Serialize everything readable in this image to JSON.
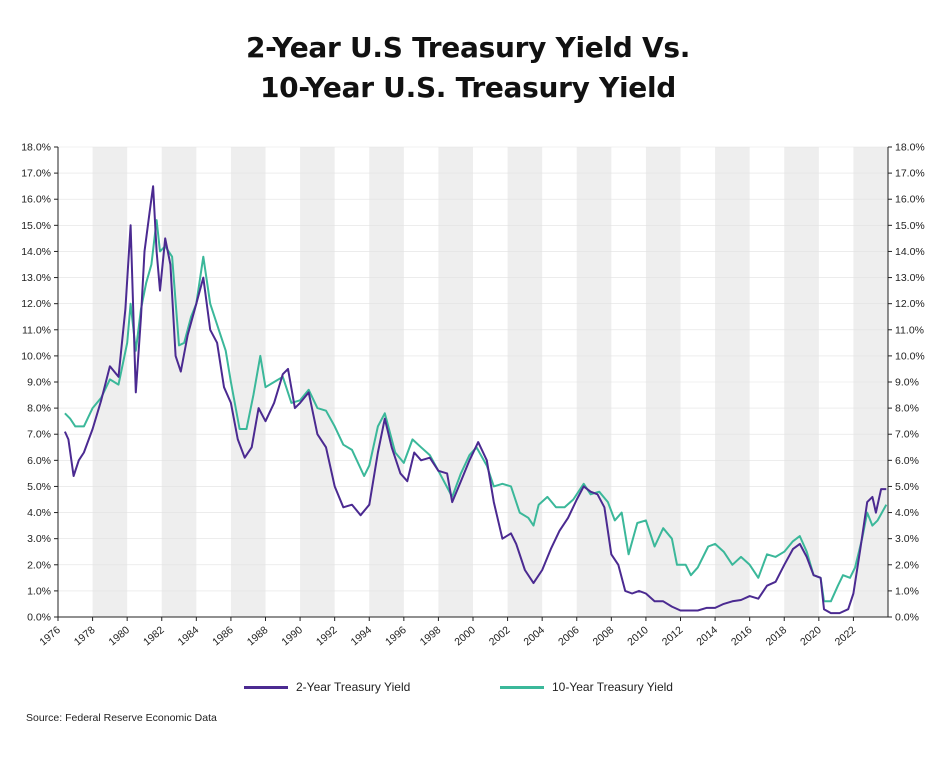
{
  "chart_data": {
    "type": "line",
    "title_line1": "2-Year U.S Treasury Yield Vs.",
    "title_line2": "10-Year U.S. Treasury Yield",
    "y_ticks": [
      "0.0%",
      "1.0%",
      "2.0%",
      "3.0%",
      "4.0%",
      "5.0%",
      "6.0%",
      "7.0%",
      "8.0%",
      "9.0%",
      "10.0%",
      "11.0%",
      "12.0%",
      "13.0%",
      "14.0%",
      "15.0%",
      "16.0%",
      "17.0%",
      "18.0%"
    ],
    "x_ticks": [
      "1976",
      "1978",
      "1980",
      "1982",
      "1984",
      "1986",
      "1988",
      "1990",
      "1992",
      "1994",
      "1996",
      "1998",
      "2000",
      "2002",
      "2004",
      "2006",
      "2008",
      "2010",
      "2012",
      "2014",
      "2016",
      "2018",
      "2020",
      "2022"
    ],
    "ylim": [
      0,
      18
    ],
    "xlim": [
      1976,
      2024
    ],
    "grid": "alternating two-year vertical bands",
    "legend_placement": "bottom",
    "series": [
      {
        "name": "2-Year Treasury Yield",
        "color": "#4b2a91",
        "points": [
          [
            1976.4,
            7.1
          ],
          [
            1976.6,
            6.8
          ],
          [
            1976.9,
            5.4
          ],
          [
            1977.2,
            6.0
          ],
          [
            1977.5,
            6.3
          ],
          [
            1978.0,
            7.2
          ],
          [
            1978.5,
            8.3
          ],
          [
            1979.0,
            9.6
          ],
          [
            1979.5,
            9.2
          ],
          [
            1979.9,
            11.8
          ],
          [
            1980.2,
            15.0
          ],
          [
            1980.5,
            8.6
          ],
          [
            1980.8,
            11.5
          ],
          [
            1981.0,
            14.0
          ],
          [
            1981.3,
            15.5
          ],
          [
            1981.5,
            16.5
          ],
          [
            1981.7,
            14.0
          ],
          [
            1981.9,
            12.5
          ],
          [
            1982.2,
            14.5
          ],
          [
            1982.5,
            13.5
          ],
          [
            1982.8,
            10.0
          ],
          [
            1983.1,
            9.4
          ],
          [
            1983.5,
            10.8
          ],
          [
            1984.0,
            12.0
          ],
          [
            1984.4,
            13.0
          ],
          [
            1984.8,
            11.0
          ],
          [
            1985.2,
            10.5
          ],
          [
            1985.6,
            8.8
          ],
          [
            1986.0,
            8.2
          ],
          [
            1986.4,
            6.8
          ],
          [
            1986.8,
            6.1
          ],
          [
            1987.2,
            6.5
          ],
          [
            1987.6,
            8.0
          ],
          [
            1988.0,
            7.5
          ],
          [
            1988.5,
            8.2
          ],
          [
            1989.0,
            9.3
          ],
          [
            1989.3,
            9.5
          ],
          [
            1989.7,
            8.0
          ],
          [
            1990.0,
            8.2
          ],
          [
            1990.5,
            8.6
          ],
          [
            1991.0,
            7.0
          ],
          [
            1991.5,
            6.5
          ],
          [
            1992.0,
            5.0
          ],
          [
            1992.5,
            4.2
          ],
          [
            1993.0,
            4.3
          ],
          [
            1993.5,
            3.9
          ],
          [
            1994.0,
            4.3
          ],
          [
            1994.5,
            6.3
          ],
          [
            1994.9,
            7.6
          ],
          [
            1995.3,
            6.5
          ],
          [
            1995.8,
            5.5
          ],
          [
            1996.2,
            5.2
          ],
          [
            1996.6,
            6.3
          ],
          [
            1997.0,
            6.0
          ],
          [
            1997.5,
            6.1
          ],
          [
            1998.0,
            5.6
          ],
          [
            1998.5,
            5.5
          ],
          [
            1998.8,
            4.4
          ],
          [
            1999.3,
            5.2
          ],
          [
            1999.8,
            6.0
          ],
          [
            2000.3,
            6.7
          ],
          [
            2000.8,
            6.0
          ],
          [
            2001.2,
            4.4
          ],
          [
            2001.7,
            3.0
          ],
          [
            2002.2,
            3.2
          ],
          [
            2002.5,
            2.8
          ],
          [
            2003.0,
            1.8
          ],
          [
            2003.5,
            1.3
          ],
          [
            2004.0,
            1.8
          ],
          [
            2004.5,
            2.6
          ],
          [
            2005.0,
            3.3
          ],
          [
            2005.5,
            3.8
          ],
          [
            2006.0,
            4.5
          ],
          [
            2006.4,
            5.0
          ],
          [
            2006.8,
            4.8
          ],
          [
            2007.2,
            4.7
          ],
          [
            2007.6,
            4.2
          ],
          [
            2008.0,
            2.4
          ],
          [
            2008.4,
            2.0
          ],
          [
            2008.8,
            1.0
          ],
          [
            2009.2,
            0.9
          ],
          [
            2009.6,
            1.0
          ],
          [
            2010.0,
            0.9
          ],
          [
            2010.5,
            0.6
          ],
          [
            2011.0,
            0.6
          ],
          [
            2011.5,
            0.4
          ],
          [
            2012.0,
            0.25
          ],
          [
            2012.5,
            0.25
          ],
          [
            2013.0,
            0.25
          ],
          [
            2013.5,
            0.35
          ],
          [
            2014.0,
            0.35
          ],
          [
            2014.5,
            0.5
          ],
          [
            2015.0,
            0.6
          ],
          [
            2015.5,
            0.65
          ],
          [
            2016.0,
            0.8
          ],
          [
            2016.5,
            0.7
          ],
          [
            2017.0,
            1.2
          ],
          [
            2017.5,
            1.35
          ],
          [
            2018.0,
            2.0
          ],
          [
            2018.5,
            2.6
          ],
          [
            2018.9,
            2.8
          ],
          [
            2019.3,
            2.3
          ],
          [
            2019.7,
            1.6
          ],
          [
            2020.1,
            1.5
          ],
          [
            2020.3,
            0.3
          ],
          [
            2020.7,
            0.15
          ],
          [
            2021.2,
            0.15
          ],
          [
            2021.7,
            0.3
          ],
          [
            2022.0,
            0.9
          ],
          [
            2022.4,
            2.6
          ],
          [
            2022.8,
            4.4
          ],
          [
            2023.1,
            4.6
          ],
          [
            2023.3,
            4.0
          ],
          [
            2023.6,
            4.9
          ],
          [
            2023.9,
            4.9
          ]
        ]
      },
      {
        "name": "10-Year Treasury Yield",
        "color": "#3bb89a",
        "points": [
          [
            1976.4,
            7.8
          ],
          [
            1976.7,
            7.6
          ],
          [
            1977.0,
            7.3
          ],
          [
            1977.5,
            7.3
          ],
          [
            1978.0,
            8.0
          ],
          [
            1978.5,
            8.4
          ],
          [
            1979.0,
            9.1
          ],
          [
            1979.5,
            8.9
          ],
          [
            1980.0,
            10.5
          ],
          [
            1980.2,
            12.0
          ],
          [
            1980.5,
            10.2
          ],
          [
            1980.8,
            11.8
          ],
          [
            1981.1,
            12.8
          ],
          [
            1981.4,
            13.5
          ],
          [
            1981.7,
            15.2
          ],
          [
            1981.9,
            14.0
          ],
          [
            1982.2,
            14.2
          ],
          [
            1982.6,
            13.8
          ],
          [
            1983.0,
            10.4
          ],
          [
            1983.3,
            10.5
          ],
          [
            1983.7,
            11.5
          ],
          [
            1984.0,
            12.0
          ],
          [
            1984.4,
            13.8
          ],
          [
            1984.8,
            12.0
          ],
          [
            1985.3,
            11.0
          ],
          [
            1985.7,
            10.2
          ],
          [
            1986.0,
            9.0
          ],
          [
            1986.5,
            7.2
          ],
          [
            1986.9,
            7.2
          ],
          [
            1987.3,
            8.5
          ],
          [
            1987.7,
            10.0
          ],
          [
            1988.0,
            8.8
          ],
          [
            1988.5,
            9.0
          ],
          [
            1989.0,
            9.2
          ],
          [
            1989.5,
            8.2
          ],
          [
            1990.0,
            8.3
          ],
          [
            1990.5,
            8.7
          ],
          [
            1991.0,
            8.0
          ],
          [
            1991.5,
            7.9
          ],
          [
            1992.0,
            7.3
          ],
          [
            1992.5,
            6.6
          ],
          [
            1993.0,
            6.4
          ],
          [
            1993.7,
            5.4
          ],
          [
            1994.0,
            5.8
          ],
          [
            1994.5,
            7.3
          ],
          [
            1994.9,
            7.8
          ],
          [
            1995.5,
            6.3
          ],
          [
            1996.0,
            5.9
          ],
          [
            1996.5,
            6.8
          ],
          [
            1997.0,
            6.5
          ],
          [
            1997.5,
            6.2
          ],
          [
            1998.0,
            5.6
          ],
          [
            1998.8,
            4.6
          ],
          [
            1999.3,
            5.5
          ],
          [
            1999.8,
            6.2
          ],
          [
            2000.2,
            6.5
          ],
          [
            2000.8,
            5.8
          ],
          [
            2001.2,
            5.0
          ],
          [
            2001.7,
            5.1
          ],
          [
            2002.2,
            5.0
          ],
          [
            2002.7,
            4.0
          ],
          [
            2003.2,
            3.8
          ],
          [
            2003.5,
            3.5
          ],
          [
            2003.8,
            4.3
          ],
          [
            2004.3,
            4.6
          ],
          [
            2004.8,
            4.2
          ],
          [
            2005.3,
            4.2
          ],
          [
            2005.8,
            4.5
          ],
          [
            2006.4,
            5.1
          ],
          [
            2006.8,
            4.7
          ],
          [
            2007.3,
            4.8
          ],
          [
            2007.8,
            4.4
          ],
          [
            2008.2,
            3.7
          ],
          [
            2008.6,
            4.0
          ],
          [
            2009.0,
            2.4
          ],
          [
            2009.5,
            3.6
          ],
          [
            2010.0,
            3.7
          ],
          [
            2010.5,
            2.7
          ],
          [
            2011.0,
            3.4
          ],
          [
            2011.5,
            3.0
          ],
          [
            2011.8,
            2.0
          ],
          [
            2012.3,
            2.0
          ],
          [
            2012.6,
            1.6
          ],
          [
            2013.0,
            1.9
          ],
          [
            2013.6,
            2.7
          ],
          [
            2014.0,
            2.8
          ],
          [
            2014.5,
            2.5
          ],
          [
            2015.0,
            2.0
          ],
          [
            2015.5,
            2.3
          ],
          [
            2016.0,
            2.0
          ],
          [
            2016.5,
            1.5
          ],
          [
            2017.0,
            2.4
          ],
          [
            2017.5,
            2.3
          ],
          [
            2018.0,
            2.5
          ],
          [
            2018.5,
            2.9
          ],
          [
            2018.9,
            3.1
          ],
          [
            2019.3,
            2.5
          ],
          [
            2019.7,
            1.6
          ],
          [
            2020.1,
            1.5
          ],
          [
            2020.3,
            0.6
          ],
          [
            2020.7,
            0.6
          ],
          [
            2021.1,
            1.2
          ],
          [
            2021.4,
            1.6
          ],
          [
            2021.8,
            1.5
          ],
          [
            2022.1,
            1.9
          ],
          [
            2022.5,
            3.0
          ],
          [
            2022.8,
            4.0
          ],
          [
            2023.1,
            3.5
          ],
          [
            2023.4,
            3.7
          ],
          [
            2023.9,
            4.3
          ]
        ]
      }
    ],
    "source": "Source: Federal Reserve Economic Data"
  }
}
